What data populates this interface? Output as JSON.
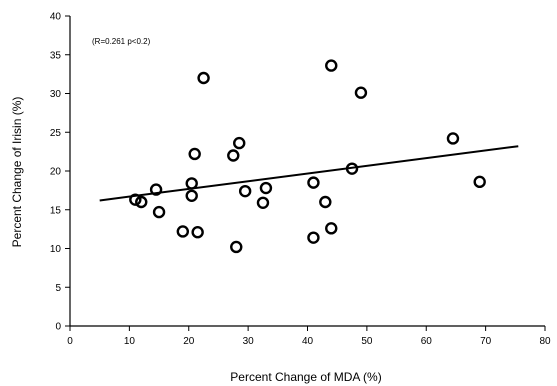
{
  "chart_data": {
    "type": "scatter",
    "title": "",
    "annotation": "(R=0.261 p<0.2)",
    "xlabel": "Percent Change of MDA (%)",
    "ylabel": "Percent Change of Irisin (%)",
    "xlim": [
      0,
      80
    ],
    "ylim": [
      0,
      40
    ],
    "xticks": [
      "0",
      "10",
      "20",
      "30",
      "40",
      "50",
      "60",
      "70",
      "80"
    ],
    "yticks": [
      "0",
      "5",
      "10",
      "15",
      "20",
      "25",
      "30",
      "35",
      "40"
    ],
    "grid": false,
    "legend": "none",
    "marker": "open-circle",
    "marker_color": "#000000",
    "points": [
      {
        "x": 11,
        "y": 16.3
      },
      {
        "x": 12,
        "y": 16.0
      },
      {
        "x": 14.5,
        "y": 17.6
      },
      {
        "x": 15,
        "y": 14.7
      },
      {
        "x": 19,
        "y": 12.2
      },
      {
        "x": 20.5,
        "y": 18.4
      },
      {
        "x": 20.5,
        "y": 16.8
      },
      {
        "x": 21,
        "y": 22.2
      },
      {
        "x": 21.5,
        "y": 12.1
      },
      {
        "x": 22.5,
        "y": 32.0
      },
      {
        "x": 27.5,
        "y": 22.0
      },
      {
        "x": 28,
        "y": 10.2
      },
      {
        "x": 28.5,
        "y": 23.6
      },
      {
        "x": 29.5,
        "y": 17.4
      },
      {
        "x": 32.5,
        "y": 15.9
      },
      {
        "x": 33,
        "y": 17.8
      },
      {
        "x": 41,
        "y": 18.5
      },
      {
        "x": 41,
        "y": 11.4
      },
      {
        "x": 43,
        "y": 16.0
      },
      {
        "x": 44,
        "y": 33.6
      },
      {
        "x": 44,
        "y": 12.6
      },
      {
        "x": 47.5,
        "y": 20.3
      },
      {
        "x": 49,
        "y": 30.1
      },
      {
        "x": 64.5,
        "y": 24.2
      },
      {
        "x": 69,
        "y": 18.6
      }
    ],
    "trendline": {
      "x": [
        5,
        75.5
      ],
      "y": [
        16.2,
        23.2
      ]
    }
  }
}
